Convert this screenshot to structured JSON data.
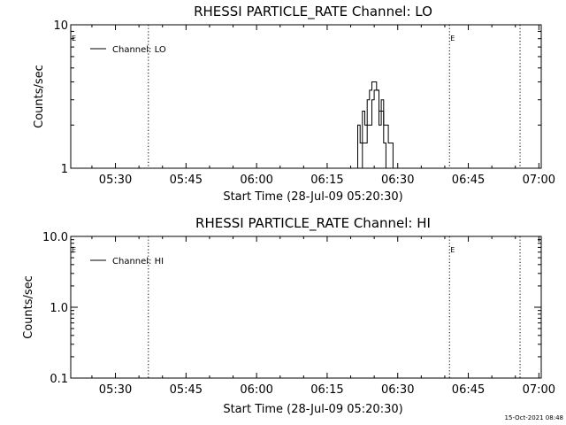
{
  "footer": {
    "timestamp": "15-Oct-2021 08:48"
  },
  "chart_data": [
    {
      "type": "line",
      "title": "RHESSI PARTICLE_RATE Channel: LO",
      "xlabel": "Start Time (28-Jul-09 05:20:30)",
      "ylabel": "Counts/sec",
      "yscale": "log",
      "xlim": [
        "05:20:30",
        "07:00:30"
      ],
      "ylim": [
        1,
        10
      ],
      "xticks": [
        "05:30",
        "05:45",
        "06:00",
        "06:15",
        "06:30",
        "06:45",
        "07:00"
      ],
      "yticks": [
        "1",
        "10"
      ],
      "legend_position": "top-left",
      "series": [
        {
          "name": "Channel: LO",
          "x": [
            "06:21:30",
            "06:21:30",
            "06:22:00",
            "06:22:00",
            "06:22:30",
            "06:22:30",
            "06:23:00",
            "06:23:00",
            "06:23:30",
            "06:23:30",
            "06:24:00",
            "06:24:00",
            "06:24:30",
            "06:24:30",
            "06:25:30",
            "06:25:30",
            "06:26:00",
            "06:26:00",
            "06:26:30",
            "06:26:30",
            "06:27:00",
            "06:27:00",
            "06:27:30",
            "06:27:30",
            "06:28:00",
            "06:28:00",
            "06:29:00",
            "06:29:00"
          ],
          "y": [
            1,
            2,
            2,
            1.5,
            1.5,
            2.5,
            2.5,
            2,
            2,
            3,
            3,
            3.5,
            3.5,
            4,
            4,
            3.5,
            3.5,
            2,
            2,
            3,
            3,
            2,
            2,
            2,
            2,
            1.5,
            1.5,
            1
          ]
        },
        {
          "name": "Channel: LO",
          "x": [
            "06:22:30",
            "06:22:30",
            "06:23:30",
            "06:23:30",
            "06:24:30",
            "06:24:30",
            "06:25:00",
            "06:25:00",
            "06:26:00",
            "06:26:00",
            "06:27:00",
            "06:27:00",
            "06:27:30",
            "06:27:30"
          ],
          "y": [
            1,
            1.5,
            1.5,
            2,
            2,
            3,
            3,
            3.5,
            3.5,
            2.5,
            2.5,
            1.5,
            1.5,
            1
          ]
        }
      ],
      "vlines": [
        "05:37:00",
        "06:41:00",
        "06:56:00"
      ],
      "markers": [
        {
          "label": "E",
          "x": "05:20:30"
        },
        {
          "label": "E",
          "x": "06:41:00"
        }
      ]
    },
    {
      "type": "line",
      "title": "RHESSI PARTICLE_RATE Channel: HI",
      "xlabel": "Start Time (28-Jul-09 05:20:30)",
      "ylabel": "Counts/sec",
      "yscale": "log",
      "xlim": [
        "05:20:30",
        "07:00:30"
      ],
      "ylim": [
        0.1,
        10
      ],
      "xticks": [
        "05:30",
        "05:45",
        "06:00",
        "06:15",
        "06:30",
        "06:45",
        "07:00"
      ],
      "yticks": [
        "0.1",
        "1.0",
        "10.0"
      ],
      "legend_position": "top-left",
      "series": [
        {
          "name": "Channel: HI",
          "x": [],
          "y": []
        }
      ],
      "vlines": [
        "05:37:00",
        "06:41:00",
        "06:56:00"
      ],
      "markers": [
        {
          "label": "E",
          "x": "05:20:30"
        },
        {
          "label": "E",
          "x": "06:41:00"
        }
      ]
    }
  ]
}
